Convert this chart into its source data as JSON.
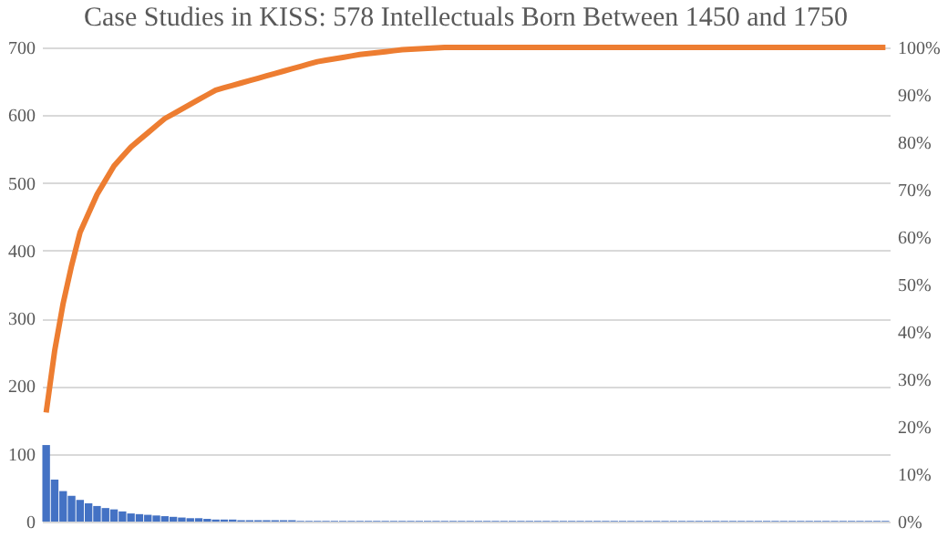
{
  "chart_data": {
    "type": "bar",
    "title": "Case Studies in KISS: 578 Intellectuals Born Between 1450 and 1750",
    "categories": [
      null,
      null,
      null,
      null,
      null,
      null,
      null,
      null,
      null,
      null,
      null,
      null,
      null,
      null,
      null,
      null,
      null,
      null,
      null,
      null,
      null,
      null,
      null,
      null,
      null,
      null,
      null,
      null,
      null,
      null,
      null,
      null,
      null,
      null,
      null,
      null,
      null,
      null,
      null,
      null,
      null,
      null,
      null,
      null,
      null,
      null,
      null,
      null,
      null,
      null,
      null,
      null,
      null,
      null,
      null,
      null,
      null,
      null,
      null,
      null,
      null,
      null,
      null,
      null,
      null,
      null,
      null,
      null,
      null,
      null,
      null,
      null,
      null,
      null,
      null,
      null,
      null,
      null,
      null,
      null,
      null,
      null,
      null,
      null,
      null,
      null,
      null,
      null,
      null,
      null,
      null,
      null,
      null,
      null,
      null,
      null,
      null,
      null,
      null,
      null
    ],
    "series": [
      {
        "color": "#4472c4",
        "values": [
          113,
          62,
          45,
          38,
          32,
          27,
          23,
          20,
          18,
          15,
          12,
          11,
          10,
          9,
          8,
          7,
          6,
          5,
          5,
          4,
          3,
          3,
          3,
          2,
          2,
          2,
          2,
          2,
          2,
          2,
          1,
          1,
          1,
          1,
          1,
          1,
          1,
          1,
          1,
          1,
          1,
          1,
          1,
          1,
          1,
          1,
          1,
          1,
          1,
          1,
          1,
          1,
          1,
          1,
          1,
          1,
          1,
          1,
          1,
          1,
          1,
          1,
          1,
          1,
          1,
          1,
          1,
          1,
          1,
          1,
          1,
          1,
          1,
          1,
          1,
          1,
          1,
          1,
          1,
          1,
          1,
          1,
          1,
          1,
          1,
          1,
          1,
          1,
          1,
          1,
          1,
          1,
          1,
          1,
          1,
          1,
          1,
          1,
          1,
          1
        ]
      },
      {
        "type": "line",
        "color": "#ed7d31",
        "axis": "y2",
        "values": [
          23,
          36,
          46,
          54,
          61,
          65,
          69,
          72,
          75,
          77,
          79,
          80.5,
          82,
          83.5,
          85,
          86,
          87,
          88,
          89,
          90,
          91,
          91.5,
          92,
          92.5,
          93,
          93.5,
          94,
          94.5,
          95,
          95.5,
          96,
          96.5,
          97,
          97.3,
          97.6,
          97.9,
          98.2,
          98.5,
          98.7,
          98.9,
          99.1,
          99.3,
          99.5,
          99.6,
          99.7,
          99.8,
          99.9,
          100,
          100,
          100,
          100,
          100,
          100,
          100,
          100,
          100,
          100,
          100,
          100,
          100,
          100,
          100,
          100,
          100,
          100,
          100,
          100,
          100,
          100,
          100,
          100,
          100,
          100,
          100,
          100,
          100,
          100,
          100,
          100,
          100,
          100,
          100,
          100,
          100,
          100,
          100,
          100,
          100,
          100,
          100,
          100,
          100,
          100,
          100,
          100,
          100,
          100,
          100,
          100,
          100
        ]
      }
    ],
    "ylim": [
      0,
      700
    ],
    "yticks": [
      0,
      100,
      200,
      300,
      400,
      500,
      600,
      700
    ],
    "y2lim": [
      0,
      100
    ],
    "y2ticks": [
      {
        "value": 0,
        "label": "0%"
      },
      {
        "value": 10,
        "label": "10%"
      },
      {
        "value": 20,
        "label": "20%"
      },
      {
        "value": 30,
        "label": "30%"
      },
      {
        "value": 40,
        "label": "40%"
      },
      {
        "value": 50,
        "label": "50%"
      },
      {
        "value": 60,
        "label": "60%"
      },
      {
        "value": 70,
        "label": "70%"
      },
      {
        "value": 80,
        "label": "80%"
      },
      {
        "value": 90,
        "label": "90%"
      },
      {
        "value": 100,
        "label": "100%"
      }
    ],
    "grid": "y"
  }
}
